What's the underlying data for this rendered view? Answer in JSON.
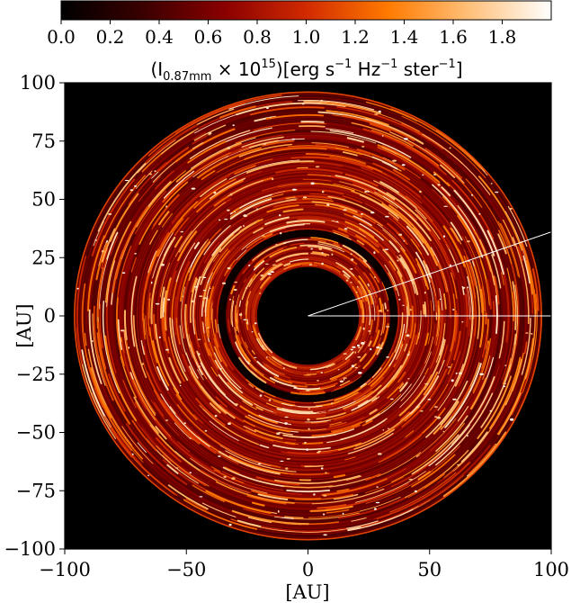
{
  "chart_data": {
    "type": "heatmap",
    "description_free": true,
    "colormap": {
      "name": "gist_heat",
      "stops": [
        "#000000",
        "#3a0000",
        "#8a0000",
        "#d12a00",
        "#ff7a00",
        "#ffc07a",
        "#ffffff"
      ],
      "ticks": [
        "0.0",
        "0.2",
        "0.4",
        "0.6",
        "0.8",
        "1.0",
        "1.2",
        "1.4",
        "1.6",
        "1.8"
      ],
      "tick_values": [
        0.0,
        0.2,
        0.4,
        0.6,
        0.8,
        1.0,
        1.2,
        1.4,
        1.6,
        1.8
      ],
      "range": [
        0.0,
        2.0
      ],
      "label": {
        "prefix": "(I",
        "sub": "0.87mm",
        "mid": " × 10",
        "sup1": "15",
        "rest1": ")[erg s",
        "sup2": "−1",
        "rest2": " Hz",
        "sup3": "−1",
        "rest3": " ster",
        "sup4": "−1",
        "end": "]"
      }
    },
    "xlabel": "[AU]",
    "ylabel": "[AU]",
    "xlim": [
      -100,
      100
    ],
    "ylim": [
      -100,
      100
    ],
    "x_ticks": [
      -100,
      -50,
      0,
      50,
      100
    ],
    "y_ticks": [
      100,
      75,
      50,
      25,
      0,
      -25,
      -50,
      -75,
      -100
    ],
    "x_tick_labels": [
      "−100",
      "−50",
      "0",
      "50",
      "100"
    ],
    "y_tick_labels": [
      "100",
      "75",
      "50",
      "25",
      "0",
      "−25",
      "−50",
      "−75",
      "−100"
    ],
    "disk": {
      "inner_hole_radius": 21,
      "inner_ring": [
        21,
        34
      ],
      "gap": [
        34,
        37
      ],
      "outer_ring": [
        37,
        96
      ],
      "brightness_peak": 1.0
    },
    "overlay_lines": [
      {
        "from": [
          0,
          0
        ],
        "to": [
          100,
          0
        ],
        "color": "#ffffff"
      },
      {
        "from": [
          0,
          0
        ],
        "to": [
          100,
          36
        ],
        "color": "#ffffff"
      }
    ]
  }
}
